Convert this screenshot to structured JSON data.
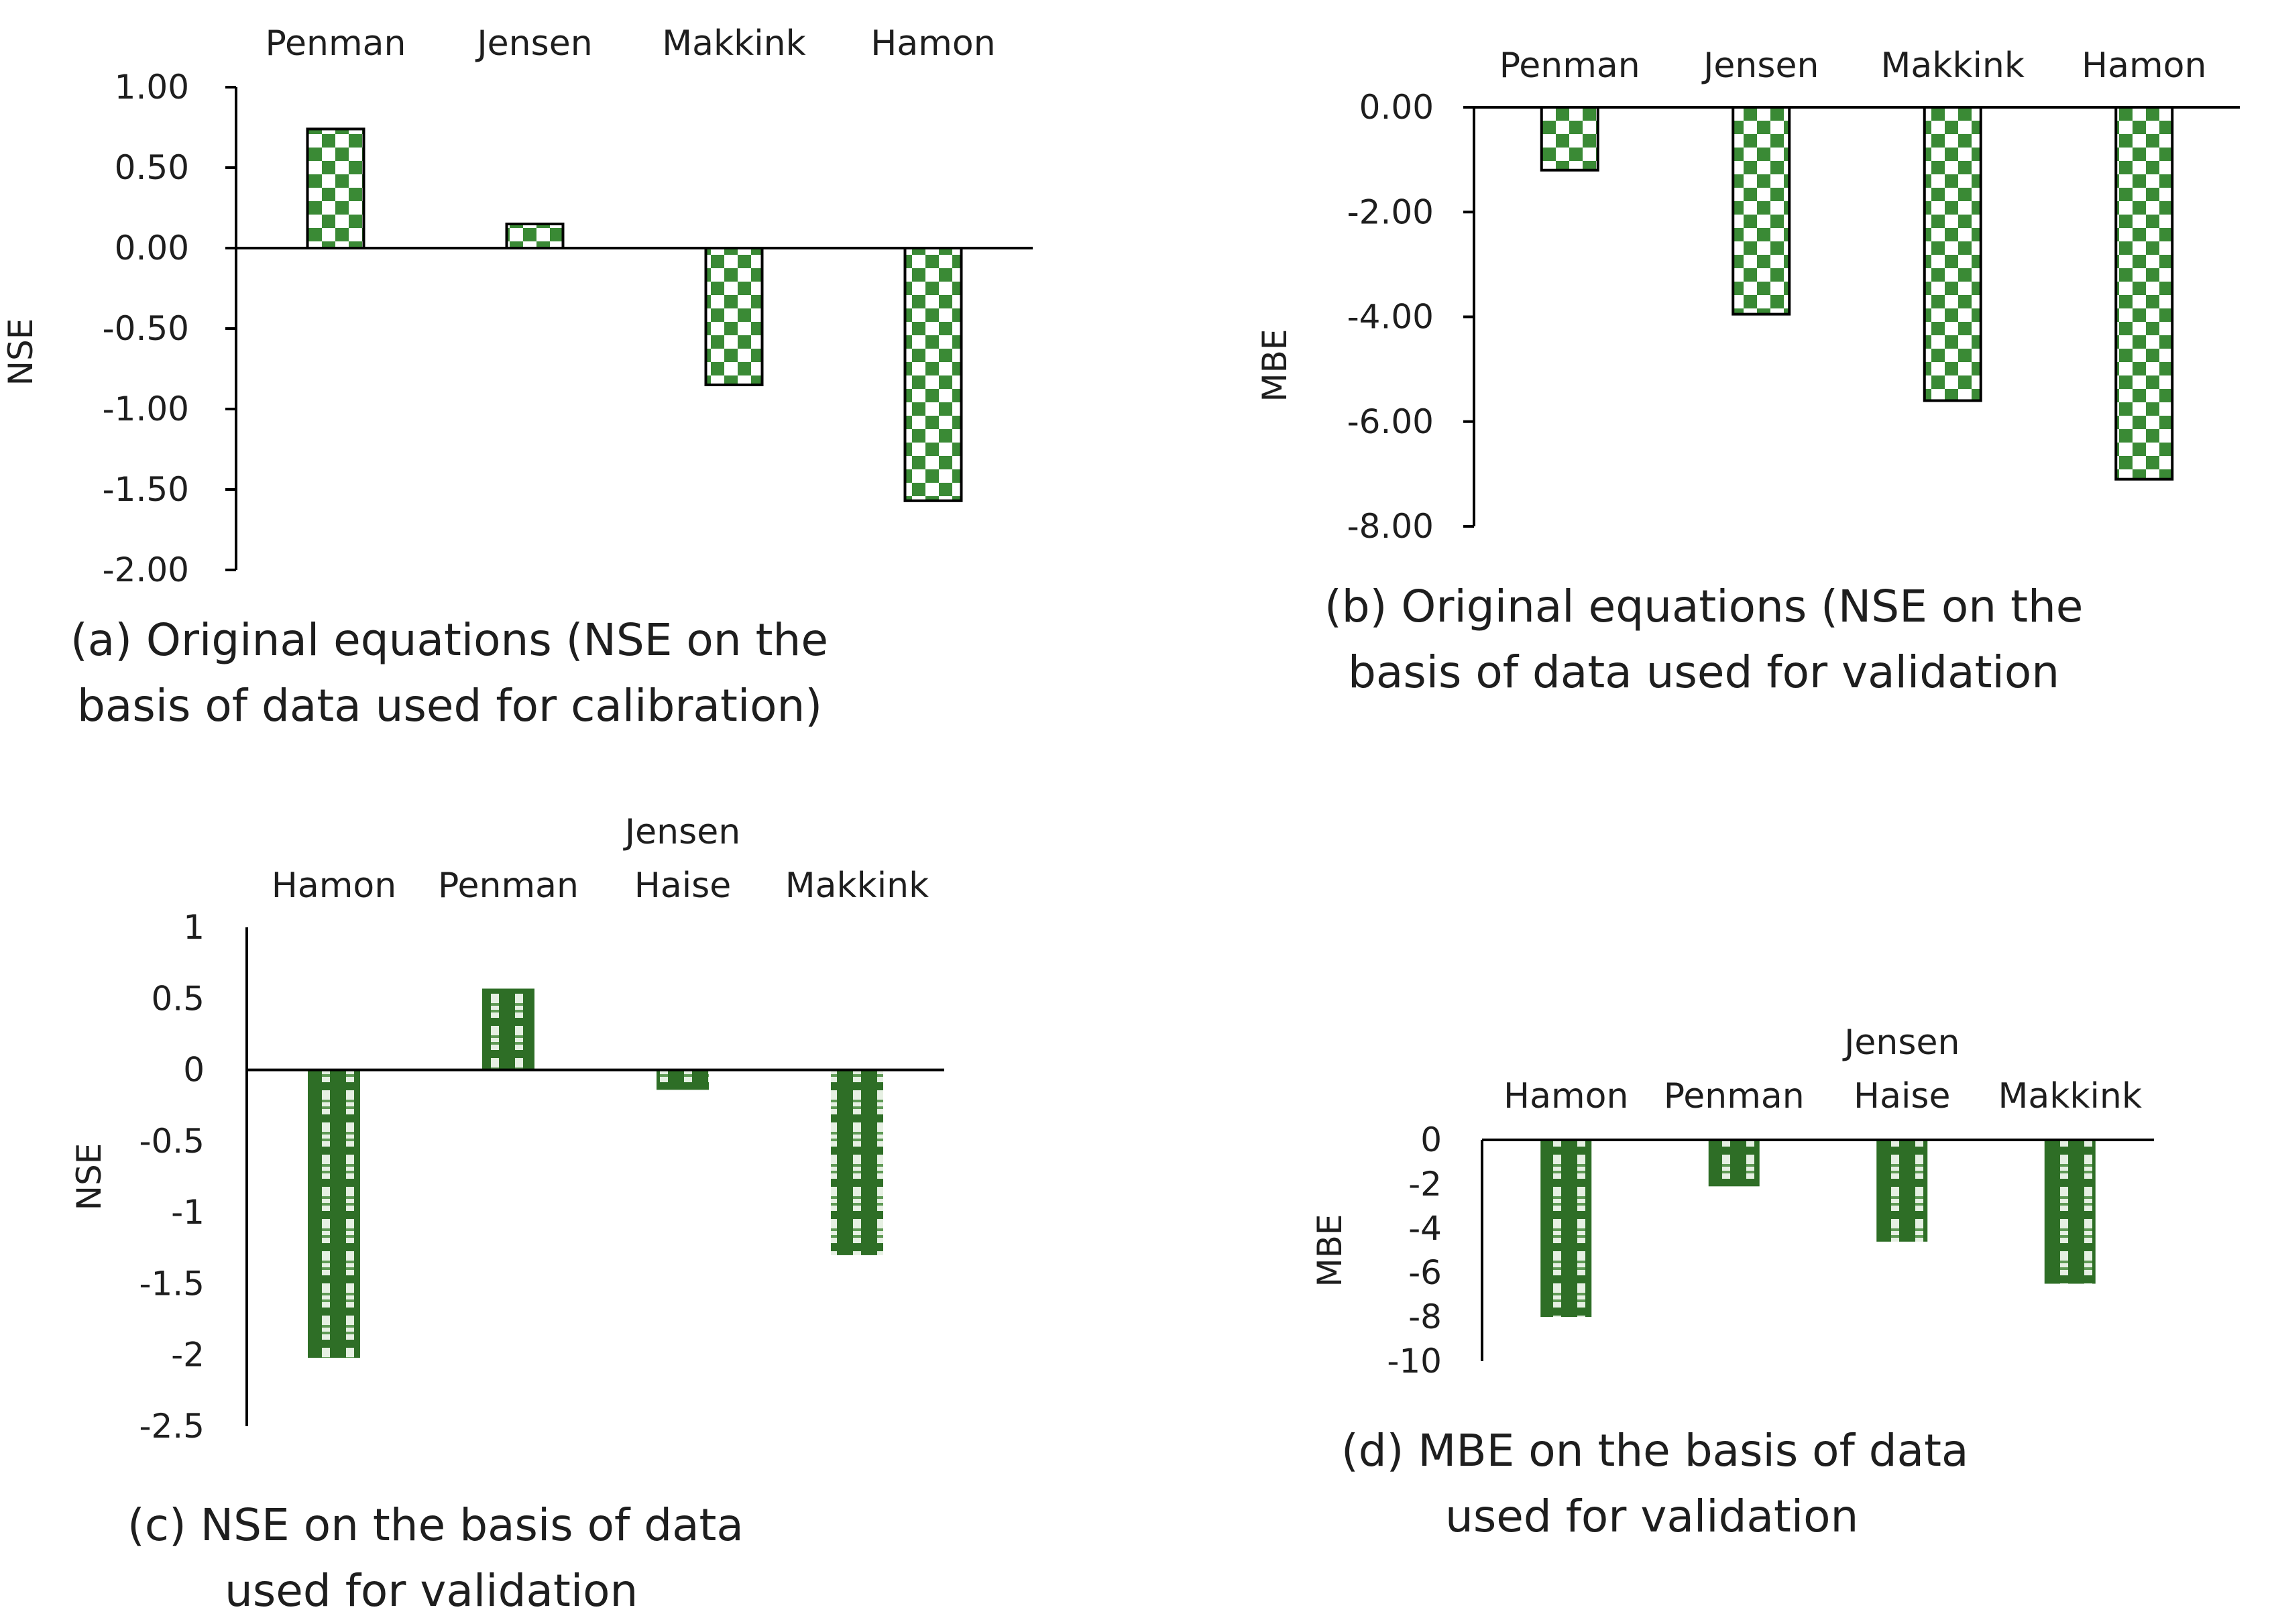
{
  "pattern_colors": {
    "check": "#3a8a35",
    "plaid": "#2e6e26",
    "light": "#ffffff",
    "axis": "#000000"
  },
  "chart_data": [
    {
      "id": "a",
      "type": "bar",
      "pattern": "check",
      "categories": [
        [
          "Penman"
        ],
        [
          "Jensen"
        ],
        [
          "Makkink"
        ],
        [
          "Hamon"
        ]
      ],
      "values": [
        0.74,
        0.15,
        -0.85,
        -1.57
      ],
      "ylabel": "NSE",
      "ylim": [
        -2.0,
        1.0
      ],
      "ticks": [
        1.0,
        0.5,
        0.0,
        -0.5,
        -1.0,
        -1.5,
        -2.0
      ],
      "tick_labels": [
        "1.00",
        "0.50",
        "0.00",
        "-0.50",
        "-1.00",
        "-1.50",
        "-2.00"
      ],
      "caption": [
        "(a) Original equations (NSE on the",
        "basis of data used for calibration)"
      ]
    },
    {
      "id": "b",
      "type": "bar",
      "pattern": "check",
      "categories": [
        [
          "Penman"
        ],
        [
          "Jensen"
        ],
        [
          "Makkink"
        ],
        [
          "Hamon"
        ]
      ],
      "values": [
        -1.2,
        -3.95,
        -5.6,
        -7.1
      ],
      "ylabel": "MBE",
      "ylim": [
        -8.0,
        0.0
      ],
      "ticks": [
        0,
        -2,
        -4,
        -6,
        -8
      ],
      "tick_labels": [
        "0.00",
        "-2.00",
        "-4.00",
        "-6.00",
        "-8.00"
      ],
      "caption": [
        "(b) Original equations (NSE on the",
        "basis of data used for validation"
      ]
    },
    {
      "id": "c",
      "type": "bar",
      "pattern": "plaid",
      "categories": [
        [
          "Hamon"
        ],
        [
          "Penman"
        ],
        [
          "Jensen",
          "Haise"
        ],
        [
          "Makkink"
        ]
      ],
      "values": [
        -2.02,
        0.57,
        -0.14,
        -1.3
      ],
      "ylabel": "NSE",
      "ylim": [
        -2.5,
        1.0
      ],
      "ticks": [
        1,
        0.5,
        0,
        -0.5,
        -1,
        -1.5,
        -2,
        -2.5
      ],
      "tick_labels": [
        "1",
        "0.5",
        "0",
        "-0.5",
        "-1",
        "-1.5",
        "-2",
        "-2.5"
      ],
      "caption": [
        "(c) NSE on the basis of data",
        "used for validation"
      ]
    },
    {
      "id": "d",
      "type": "bar",
      "pattern": "plaid",
      "categories": [
        [
          "Hamon"
        ],
        [
          "Penman"
        ],
        [
          "Jensen",
          "Haise"
        ],
        [
          "Makkink"
        ]
      ],
      "values": [
        -8.0,
        -2.1,
        -4.6,
        -6.5
      ],
      "ylabel": "MBE",
      "ylim": [
        -10,
        0
      ],
      "ticks": [
        0,
        -2,
        -4,
        -6,
        -8,
        -10
      ],
      "tick_labels": [
        "0",
        "-2",
        "-4",
        "-6",
        "-8",
        "-10"
      ],
      "caption": [
        "(d) MBE on the basis of data",
        "used for validation"
      ]
    }
  ]
}
